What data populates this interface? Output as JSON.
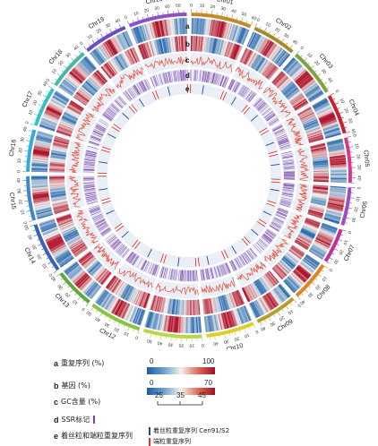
{
  "chart_data": {
    "type": "circos",
    "chromosomes": [
      {
        "name": "Chr01",
        "length": 60,
        "color": "#c48a2a"
      },
      {
        "name": "Chr02",
        "length": 44,
        "color": "#a58a2e"
      },
      {
        "name": "Chr03",
        "length": 48,
        "color": "#7fa340"
      },
      {
        "name": "Chr04",
        "length": 40,
        "color": "#c8202c"
      },
      {
        "name": "Chr05",
        "length": 45,
        "color": "#d33a8a"
      },
      {
        "name": "Chr06",
        "length": 38,
        "color": "#9b4fc2"
      },
      {
        "name": "Chr07",
        "length": 35,
        "color": "#c0309a"
      },
      {
        "name": "Chr08",
        "length": 40,
        "color": "#e0851e"
      },
      {
        "name": "Chr09",
        "length": 42,
        "color": "#b99d2c"
      },
      {
        "name": "Chr10",
        "length": 48,
        "color": "#dccf2a"
      },
      {
        "name": "Chr11",
        "length": 58,
        "color": "#b8d64a"
      },
      {
        "name": "Chr12",
        "length": 52,
        "color": "#88c440"
      },
      {
        "name": "Chr13",
        "length": 40,
        "color": "#5fa93a"
      },
      {
        "name": "Chr14",
        "length": 50,
        "color": "#3a61b5"
      },
      {
        "name": "Chr15",
        "length": 44,
        "color": "#3f86c9"
      },
      {
        "name": "Chr16",
        "length": 42,
        "color": "#36a9d6"
      },
      {
        "name": "Chr17",
        "length": 40,
        "color": "#37bfc1"
      },
      {
        "name": "Chr18",
        "length": 42,
        "color": "#49b7a8"
      },
      {
        "name": "Chr19",
        "length": 44,
        "color": "#6a4cc4"
      },
      {
        "name": "Chr20",
        "length": 58,
        "color": "#8e52c8"
      }
    ],
    "tracks": [
      "a",
      "b",
      "c",
      "d",
      "e"
    ],
    "tick_step": 10,
    "gc_range": [
      25,
      45
    ],
    "colors": {
      "heat_low": "#2b6cb0",
      "heat_mid": "#f4f1ee",
      "heat_high": "#b0132a",
      "gc_line": "#e8523a",
      "track_bg": "#e9eef7",
      "ssr": "#7b3fa6",
      "cen": "#1f4b99",
      "tel": "#e0342e"
    }
  },
  "legend": {
    "a": {
      "letter": "a",
      "text": "重复序列 (%)",
      "min": "0",
      "max": "100"
    },
    "b": {
      "letter": "b",
      "text": "基因 (%)",
      "min": "0",
      "max": "70"
    },
    "c": {
      "letter": "c",
      "text": "GC含量 (%)",
      "ticks": [
        "25",
        "35",
        "45"
      ]
    },
    "d": {
      "letter": "d",
      "text": "SSR标记"
    },
    "e": {
      "letter": "e",
      "text": "着丝粒和端粒重复序列",
      "cen_text": "着丝粒重复序列 Cen91/S2",
      "tel_text": "端粒重复序列"
    }
  }
}
